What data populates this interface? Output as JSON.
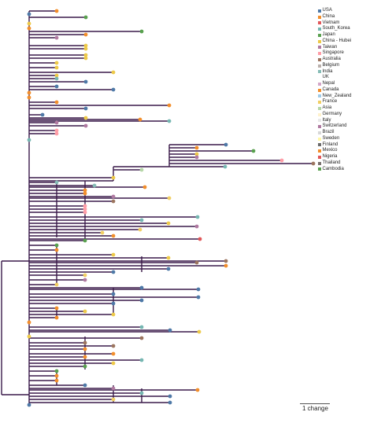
{
  "legend": {
    "items": [
      {
        "label": "USA",
        "color": "#4e79a7"
      },
      {
        "label": "China",
        "color": "#f28e2b"
      },
      {
        "label": "Vietnam",
        "color": "#e15759"
      },
      {
        "label": "South_Korea",
        "color": "#76b7b2"
      },
      {
        "label": "Japan",
        "color": "#59a14f"
      },
      {
        "label": "China - Hubei",
        "color": "#edc948"
      },
      {
        "label": "Taiwan",
        "color": "#b07aa1"
      },
      {
        "label": "Singapore",
        "color": "#ff9da7"
      },
      {
        "label": "Australia",
        "color": "#9c755f"
      },
      {
        "label": "Belgium",
        "color": "#bab0ac"
      },
      {
        "label": "India",
        "color": "#86bcb6"
      },
      {
        "label": "UK",
        "color": "#ffffff"
      },
      {
        "label": "Nepal",
        "color": "#d4a6c8"
      },
      {
        "label": "Canada",
        "color": "#f28e2b"
      },
      {
        "label": "New_Zealand",
        "color": "#a0cbe8"
      },
      {
        "label": "France",
        "color": "#f1ce63"
      },
      {
        "label": "Asia",
        "color": "#b6d7a8"
      },
      {
        "label": "Germany",
        "color": "#fff2cc"
      },
      {
        "label": "Italy",
        "color": "#e8e8e8"
      },
      {
        "label": "Switzerland",
        "color": "#b07aa1"
      },
      {
        "label": "Brazil",
        "color": "#d7d7d7"
      },
      {
        "label": "Sweden",
        "color": "#fff7a8"
      },
      {
        "label": "Finland",
        "color": "#6b6b6b"
      },
      {
        "label": "Mexico",
        "color": "#f28e2b"
      },
      {
        "label": "Nigeria",
        "color": "#e15759"
      },
      {
        "label": "Thailand",
        "color": "#79706e"
      },
      {
        "label": "Cambodia",
        "color": "#59a14f"
      }
    ]
  },
  "scale": {
    "label": "1 change"
  }
}
